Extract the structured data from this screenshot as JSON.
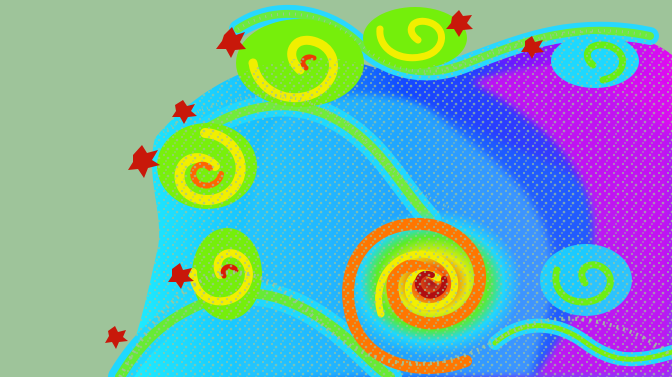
{
  "image": {
    "kind": "fractal image",
    "colors": {
      "background": "#9ec49a",
      "magenta": "#e00cf0",
      "violet": "#7a17ff",
      "blue": "#1647ff",
      "cyan": "#19d8ff",
      "green": "#7ff00c",
      "yellow": "#f1f000",
      "orange": "#ff8a00",
      "red": "#cc1508"
    }
  }
}
